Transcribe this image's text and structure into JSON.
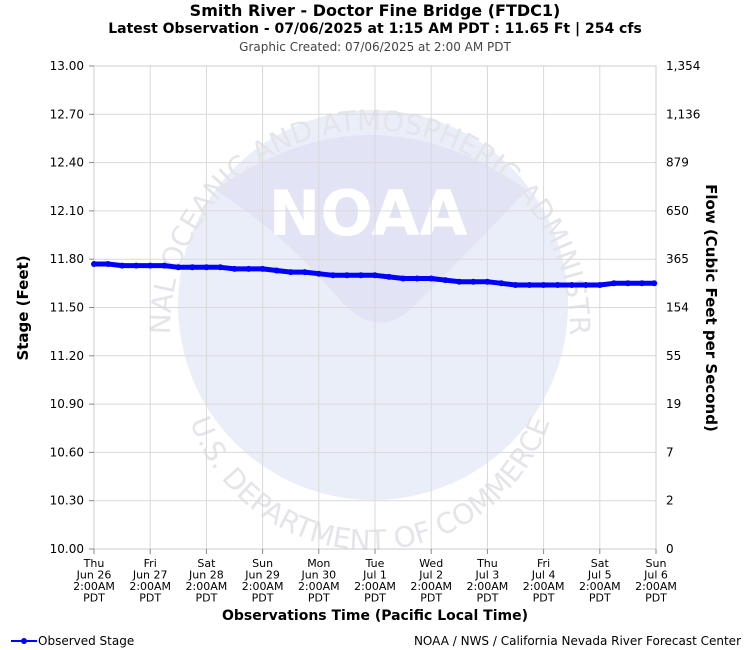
{
  "header": {
    "title": "Smith River - Doctor Fine Bridge (FTDC1)",
    "subtitle": "Latest Observation - 07/06/2025 at 1:15 AM PDT : 11.65 Ft | 254 cfs",
    "created": "Graphic Created: 07/06/2025 at 2:00 AM PDT"
  },
  "footer": {
    "legend_label": "Observed Stage",
    "credit": "NOAA / NWS / California Nevada River Forecast Center"
  },
  "watermark": {
    "logo_text": "NOAA",
    "arc_top": "NATIONAL OCEANIC AND ATMOSPHERIC ADMINISTRATION",
    "arc_bottom": "U.S. DEPARTMENT OF COMMERCE"
  },
  "colors": {
    "series": "#0000ff",
    "grid": "#d9d9d9",
    "watermark": "#e8ebf8"
  },
  "chart_data": {
    "type": "line",
    "xlabel": "Observations Time (Pacific Local Time)",
    "ylabel": "Stage (Feet)",
    "y2label": "Flow (Cubic Feet per Second)",
    "ylim": [
      10.0,
      13.0
    ],
    "yticks": [
      "13.00",
      "12.70",
      "12.40",
      "12.10",
      "11.80",
      "11.50",
      "11.20",
      "10.90",
      "10.60",
      "10.30",
      "10.00"
    ],
    "y2ticks": [
      "1,354",
      "1,136",
      "879",
      "650",
      "365",
      "154",
      "55",
      "19",
      "7",
      "2",
      "0"
    ],
    "xlim": [
      "2025-06-26T02:00",
      "2025-07-06T02:00"
    ],
    "xticks": [
      {
        "day": "Thu",
        "date": "Jun 26",
        "time": "2:00AM",
        "tz": "PDT"
      },
      {
        "day": "Fri",
        "date": "Jun 27",
        "time": "2:00AM",
        "tz": "PDT"
      },
      {
        "day": "Sat",
        "date": "Jun 28",
        "time": "2:00AM",
        "tz": "PDT"
      },
      {
        "day": "Sun",
        "date": "Jun 29",
        "time": "2:00AM",
        "tz": "PDT"
      },
      {
        "day": "Mon",
        "date": "Jun 30",
        "time": "2:00AM",
        "tz": "PDT"
      },
      {
        "day": "Tue",
        "date": "Jul 1",
        "time": "2:00AM",
        "tz": "PDT"
      },
      {
        "day": "Wed",
        "date": "Jul 2",
        "time": "2:00AM",
        "tz": "PDT"
      },
      {
        "day": "Thu",
        "date": "Jul 3",
        "time": "2:00AM",
        "tz": "PDT"
      },
      {
        "day": "Fri",
        "date": "Jul 4",
        "time": "2:00AM",
        "tz": "PDT"
      },
      {
        "day": "Sat",
        "date": "Jul 5",
        "time": "2:00AM",
        "tz": "PDT"
      },
      {
        "day": "Sun",
        "date": "Jul 6",
        "time": "2:00AM",
        "tz": "PDT"
      }
    ],
    "grid": true,
    "legend_position": "bottom-left",
    "series": [
      {
        "name": "Observed Stage",
        "points": [
          [
            "2025-06-26T02:00",
            11.77
          ],
          [
            "2025-06-26T08:00",
            11.77
          ],
          [
            "2025-06-26T14:00",
            11.76
          ],
          [
            "2025-06-26T20:00",
            11.76
          ],
          [
            "2025-06-27T02:00",
            11.76
          ],
          [
            "2025-06-27T08:00",
            11.76
          ],
          [
            "2025-06-27T14:00",
            11.75
          ],
          [
            "2025-06-27T20:00",
            11.75
          ],
          [
            "2025-06-28T02:00",
            11.75
          ],
          [
            "2025-06-28T08:00",
            11.75
          ],
          [
            "2025-06-28T14:00",
            11.74
          ],
          [
            "2025-06-28T20:00",
            11.74
          ],
          [
            "2025-06-29T02:00",
            11.74
          ],
          [
            "2025-06-29T08:00",
            11.73
          ],
          [
            "2025-06-29T14:00",
            11.72
          ],
          [
            "2025-06-29T20:00",
            11.72
          ],
          [
            "2025-06-30T02:00",
            11.71
          ],
          [
            "2025-06-30T08:00",
            11.7
          ],
          [
            "2025-06-30T14:00",
            11.7
          ],
          [
            "2025-06-30T20:00",
            11.7
          ],
          [
            "2025-07-01T02:00",
            11.7
          ],
          [
            "2025-07-01T08:00",
            11.69
          ],
          [
            "2025-07-01T14:00",
            11.68
          ],
          [
            "2025-07-01T20:00",
            11.68
          ],
          [
            "2025-07-02T02:00",
            11.68
          ],
          [
            "2025-07-02T08:00",
            11.67
          ],
          [
            "2025-07-02T14:00",
            11.66
          ],
          [
            "2025-07-02T20:00",
            11.66
          ],
          [
            "2025-07-03T02:00",
            11.66
          ],
          [
            "2025-07-03T08:00",
            11.65
          ],
          [
            "2025-07-03T14:00",
            11.64
          ],
          [
            "2025-07-03T20:00",
            11.64
          ],
          [
            "2025-07-04T02:00",
            11.64
          ],
          [
            "2025-07-04T08:00",
            11.64
          ],
          [
            "2025-07-04T14:00",
            11.64
          ],
          [
            "2025-07-04T20:00",
            11.64
          ],
          [
            "2025-07-05T02:00",
            11.64
          ],
          [
            "2025-07-05T08:00",
            11.65
          ],
          [
            "2025-07-05T14:00",
            11.65
          ],
          [
            "2025-07-05T20:00",
            11.65
          ],
          [
            "2025-07-06T01:15",
            11.65
          ]
        ]
      }
    ]
  }
}
